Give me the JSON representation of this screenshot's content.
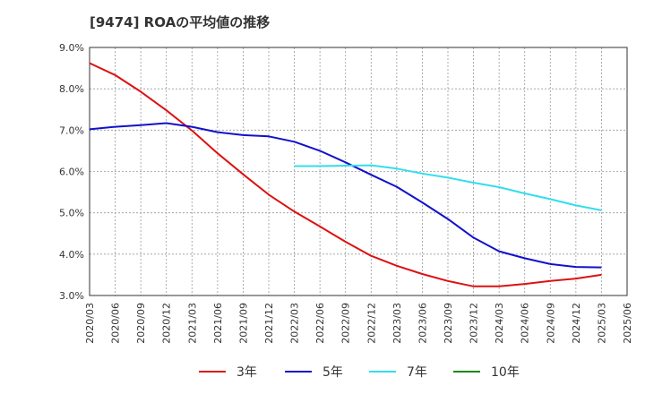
{
  "chart_data": {
    "type": "line",
    "title": "[9474]  ROAの平均値の推移",
    "xlabel": "",
    "ylabel": "",
    "x": [
      "2020/03",
      "2020/06",
      "2020/09",
      "2020/12",
      "2021/03",
      "2021/06",
      "2021/09",
      "2021/12",
      "2022/03",
      "2022/06",
      "2022/09",
      "2022/12",
      "2023/03",
      "2023/06",
      "2023/09",
      "2023/12",
      "2024/03",
      "2024/06",
      "2024/09",
      "2024/12",
      "2025/03",
      "2025/06"
    ],
    "ylim": [
      3.0,
      9.0
    ],
    "yticks": [
      "3.0%",
      "4.0%",
      "5.0%",
      "6.0%",
      "7.0%",
      "8.0%",
      "9.0%"
    ],
    "grid": true,
    "legend_position": "bottom",
    "series": [
      {
        "name": "3年",
        "color": "#dd1111",
        "values": [
          8.62,
          8.33,
          7.93,
          7.48,
          6.99,
          6.44,
          5.93,
          5.44,
          5.03,
          4.67,
          4.3,
          3.96,
          3.72,
          3.52,
          3.35,
          3.22,
          3.22,
          3.28,
          3.35,
          3.41,
          3.5,
          null
        ]
      },
      {
        "name": "5年",
        "color": "#1111cc",
        "values": [
          7.02,
          7.08,
          7.12,
          7.17,
          7.08,
          6.95,
          6.88,
          6.85,
          6.72,
          6.5,
          6.22,
          5.92,
          5.63,
          5.25,
          4.85,
          4.4,
          4.07,
          3.9,
          3.76,
          3.69,
          3.68,
          null
        ]
      },
      {
        "name": "7年",
        "color": "#33ddee",
        "values": [
          null,
          null,
          null,
          null,
          null,
          null,
          null,
          null,
          6.13,
          6.13,
          6.14,
          6.15,
          6.07,
          5.95,
          5.85,
          5.73,
          5.62,
          5.47,
          5.33,
          5.18,
          5.06,
          null
        ]
      },
      {
        "name": "10年",
        "color": "#118811",
        "values": [
          null,
          null,
          null,
          null,
          null,
          null,
          null,
          null,
          null,
          null,
          null,
          null,
          null,
          null,
          null,
          null,
          null,
          null,
          null,
          null,
          null,
          null
        ]
      }
    ]
  }
}
